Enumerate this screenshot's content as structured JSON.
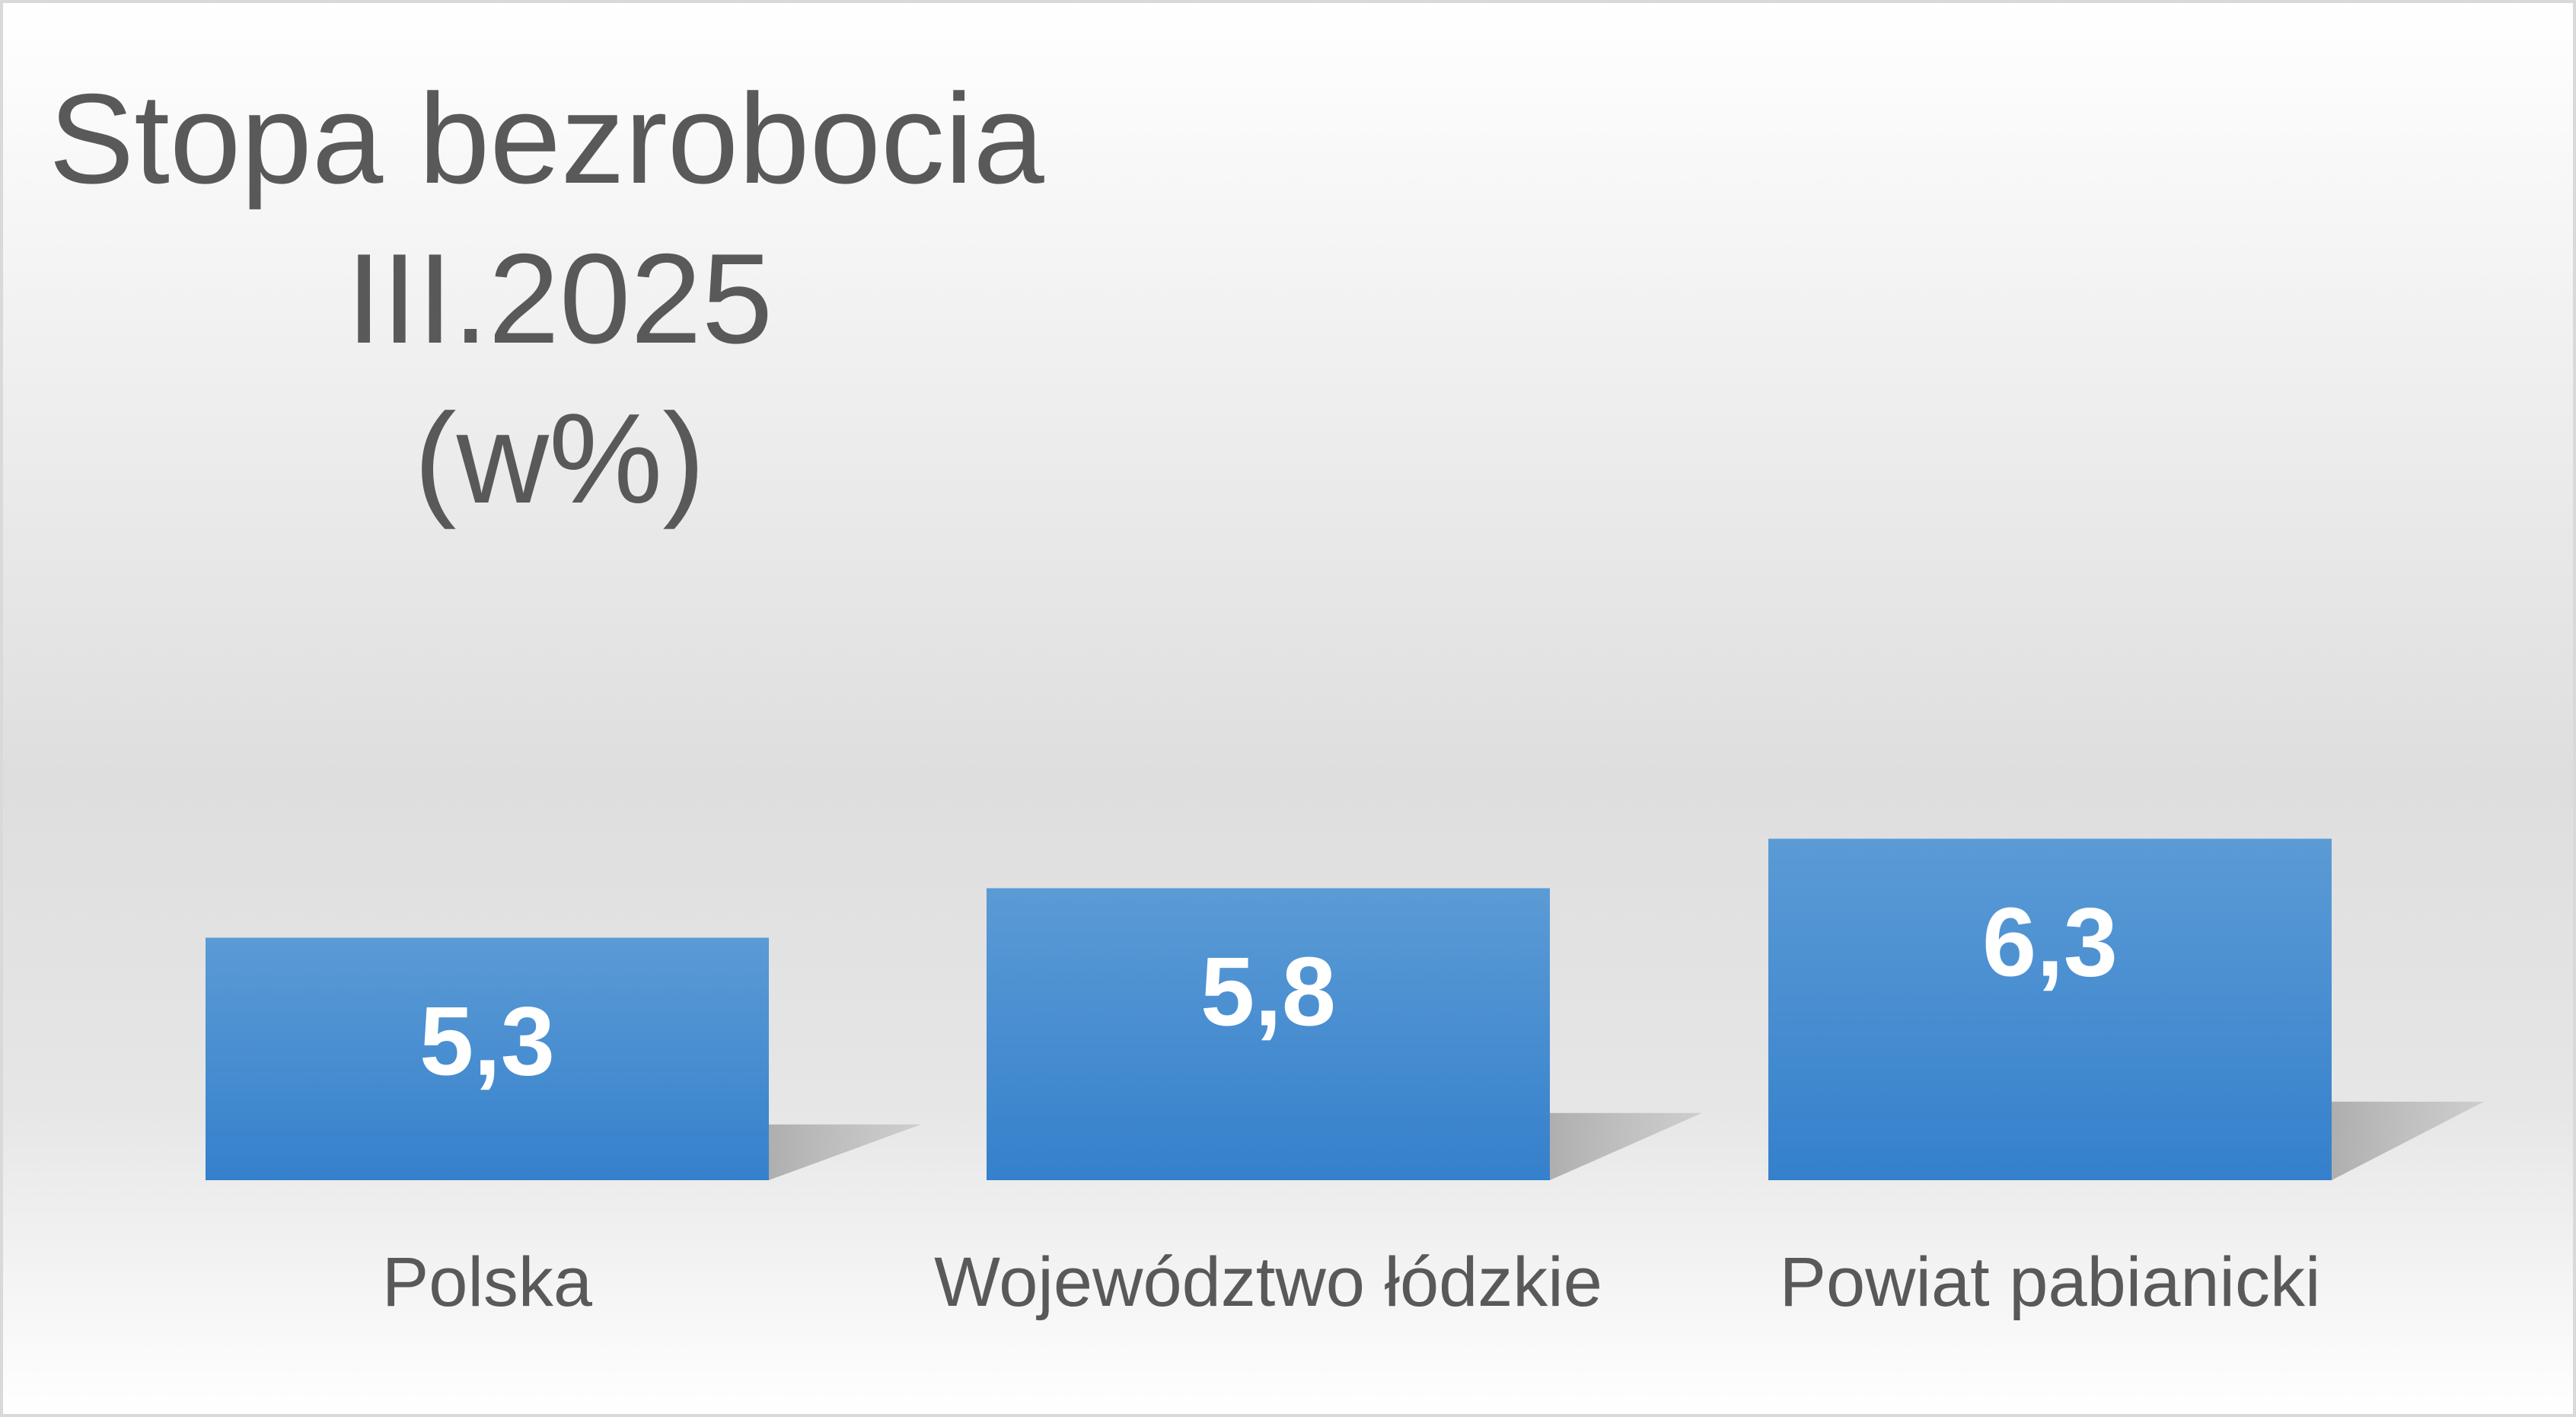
{
  "chart_data": {
    "type": "bar",
    "title_lines": [
      "Stopa bezrobocia",
      "III.2025",
      "(w%)"
    ],
    "categories": [
      "Polska",
      "Województwo łódzkie",
      "Powiat pabianicki"
    ],
    "values": [
      5.3,
      5.8,
      6.3
    ],
    "value_labels": [
      "5,3",
      "5,8",
      "6,3"
    ],
    "bar_color": "#4a8fd2",
    "bar_color_top": "#5b9bd5",
    "bar_color_bottom": "#3580cc",
    "grid": false,
    "legend": "none"
  }
}
